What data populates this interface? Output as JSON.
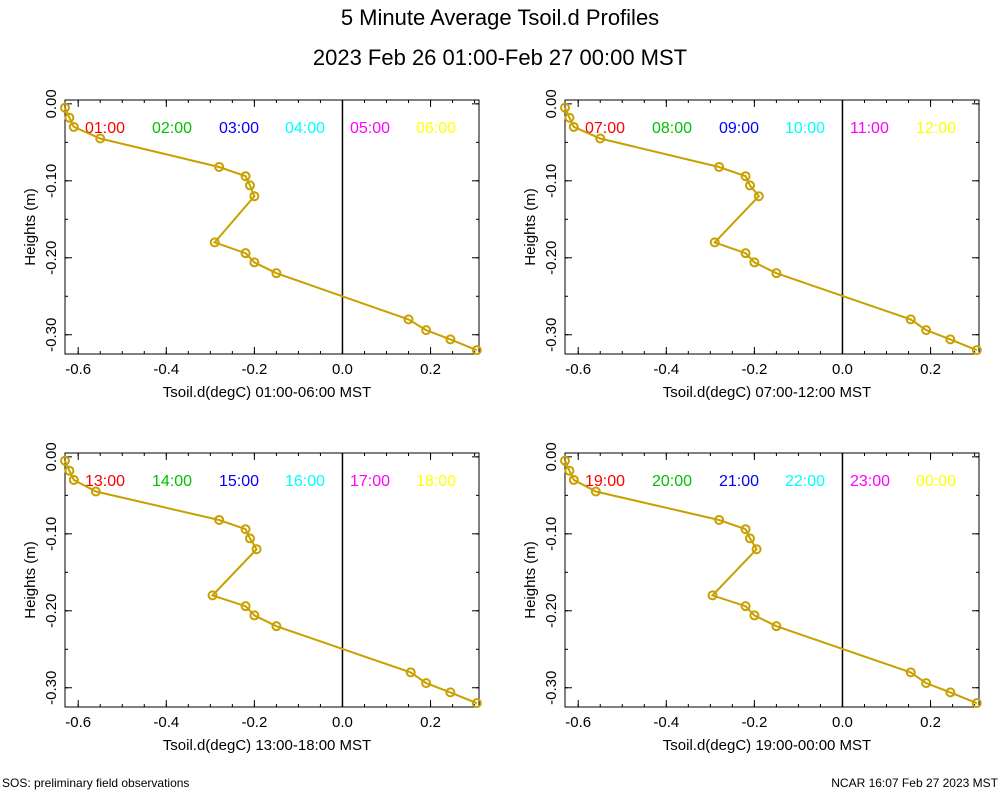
{
  "title": "5 Minute Average Tsoil.d Profiles",
  "subtitle": "2023 Feb 26 01:00-Feb 27 00:00 MST",
  "footer_left": "SOS: preliminary field observations",
  "footer_right": "NCAR 16:07 Feb 27 2023 MST",
  "colors": {
    "hour_colors": [
      "#ff0000",
      "#00c000",
      "#0000ff",
      "#00ffff",
      "#ff00ff",
      "#ffff00"
    ],
    "profile_line": "#c8a000",
    "marker": "#c8a000",
    "axis": "#000000"
  },
  "chart_data": [
    {
      "type": "line",
      "xlabel": "Tsoil.d(degC) 01:00-06:00 MST",
      "ylabel": "Heights (m)",
      "xlim": [
        -0.63,
        0.31
      ],
      "ylim": [
        -0.325,
        0.005
      ],
      "xticks": [
        -0.6,
        -0.4,
        -0.2,
        0.0,
        0.2
      ],
      "xtick_labels": [
        "-0.6",
        "-0.4",
        "-0.2",
        "0.0",
        "0.2"
      ],
      "yticks": [
        0.0,
        -0.1,
        -0.2,
        -0.3
      ],
      "ytick_labels": [
        "0.00",
        "-0.10",
        "-0.20",
        "-0.30"
      ],
      "vertical_line_x": 0.0,
      "hour_labels": [
        "01:00",
        "02:00",
        "03:00",
        "04:00",
        "05:00",
        "06:00"
      ],
      "series": [
        {
          "x": [
            -0.63,
            -0.62,
            -0.61,
            -0.55,
            -0.28,
            -0.22,
            -0.21,
            -0.2,
            -0.29,
            -0.22,
            -0.2,
            -0.15,
            0.15,
            0.19,
            0.245,
            0.305
          ],
          "y": [
            -0.005,
            -0.018,
            -0.03,
            -0.045,
            -0.082,
            -0.094,
            -0.106,
            -0.12,
            -0.18,
            -0.194,
            -0.206,
            -0.22,
            -0.28,
            -0.294,
            -0.306,
            -0.32
          ]
        }
      ]
    },
    {
      "type": "line",
      "xlabel": "Tsoil.d(degC) 07:00-12:00 MST",
      "ylabel": "Heights (m)",
      "xlim": [
        -0.63,
        0.31
      ],
      "ylim": [
        -0.325,
        0.005
      ],
      "xticks": [
        -0.6,
        -0.4,
        -0.2,
        0.0,
        0.2
      ],
      "xtick_labels": [
        "-0.6",
        "-0.4",
        "-0.2",
        "0.0",
        "0.2"
      ],
      "yticks": [
        0.0,
        -0.1,
        -0.2,
        -0.3
      ],
      "ytick_labels": [
        "0.00",
        "-0.10",
        "-0.20",
        "-0.30"
      ],
      "vertical_line_x": 0.0,
      "hour_labels": [
        "07:00",
        "08:00",
        "09:00",
        "10:00",
        "11:00",
        "12:00"
      ],
      "series": [
        {
          "x": [
            -0.63,
            -0.62,
            -0.61,
            -0.55,
            -0.28,
            -0.22,
            -0.21,
            -0.19,
            -0.29,
            -0.22,
            -0.2,
            -0.15,
            0.155,
            0.19,
            0.245,
            0.305
          ],
          "y": [
            -0.005,
            -0.018,
            -0.03,
            -0.045,
            -0.082,
            -0.094,
            -0.106,
            -0.12,
            -0.18,
            -0.194,
            -0.206,
            -0.22,
            -0.28,
            -0.294,
            -0.306,
            -0.32
          ]
        }
      ]
    },
    {
      "type": "line",
      "xlabel": "Tsoil.d(degC) 13:00-18:00 MST",
      "ylabel": "Heights (m)",
      "xlim": [
        -0.63,
        0.31
      ],
      "ylim": [
        -0.325,
        0.005
      ],
      "xticks": [
        -0.6,
        -0.4,
        -0.2,
        0.0,
        0.2
      ],
      "xtick_labels": [
        "-0.6",
        "-0.4",
        "-0.2",
        "0.0",
        "0.2"
      ],
      "yticks": [
        0.0,
        -0.1,
        -0.2,
        -0.3
      ],
      "ytick_labels": [
        "0.00",
        "-0.10",
        "-0.20",
        "-0.30"
      ],
      "vertical_line_x": 0.0,
      "hour_labels": [
        "13:00",
        "14:00",
        "15:00",
        "16:00",
        "17:00",
        "18:00"
      ],
      "series": [
        {
          "x": [
            -0.63,
            -0.62,
            -0.61,
            -0.56,
            -0.28,
            -0.22,
            -0.21,
            -0.195,
            -0.295,
            -0.22,
            -0.2,
            -0.15,
            0.155,
            0.19,
            0.245,
            0.305
          ],
          "y": [
            -0.005,
            -0.018,
            -0.03,
            -0.045,
            -0.082,
            -0.094,
            -0.106,
            -0.12,
            -0.18,
            -0.194,
            -0.206,
            -0.22,
            -0.28,
            -0.294,
            -0.306,
            -0.32
          ]
        }
      ]
    },
    {
      "type": "line",
      "xlabel": "Tsoil.d(degC) 19:00-00:00 MST",
      "ylabel": "Heights (m)",
      "xlim": [
        -0.63,
        0.31
      ],
      "ylim": [
        -0.325,
        0.005
      ],
      "xticks": [
        -0.6,
        -0.4,
        -0.2,
        0.0,
        0.2
      ],
      "xtick_labels": [
        "-0.6",
        "-0.4",
        "-0.2",
        "0.0",
        "0.2"
      ],
      "yticks": [
        0.0,
        -0.1,
        -0.2,
        -0.3
      ],
      "ytick_labels": [
        "0.00",
        "-0.10",
        "-0.20",
        "-0.30"
      ],
      "vertical_line_x": 0.0,
      "hour_labels": [
        "19:00",
        "20:00",
        "21:00",
        "22:00",
        "23:00",
        "00:00"
      ],
      "series": [
        {
          "x": [
            -0.63,
            -0.62,
            -0.61,
            -0.56,
            -0.28,
            -0.22,
            -0.21,
            -0.195,
            -0.295,
            -0.22,
            -0.2,
            -0.15,
            0.155,
            0.19,
            0.245,
            0.305
          ],
          "y": [
            -0.005,
            -0.018,
            -0.03,
            -0.045,
            -0.082,
            -0.094,
            -0.106,
            -0.12,
            -0.18,
            -0.194,
            -0.206,
            -0.22,
            -0.28,
            -0.294,
            -0.306,
            -0.32
          ]
        }
      ]
    }
  ]
}
